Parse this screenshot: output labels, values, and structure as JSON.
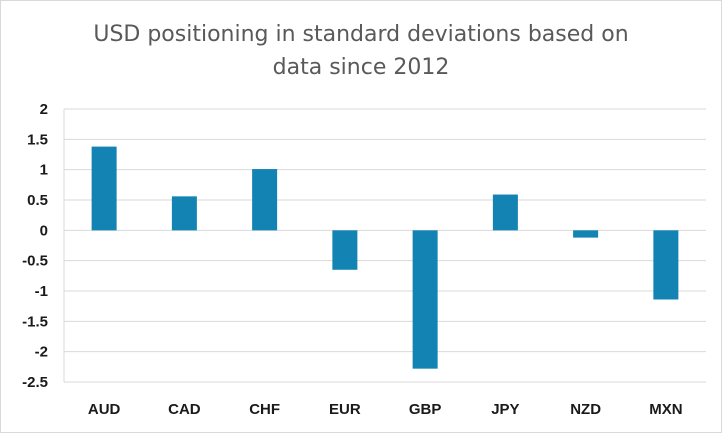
{
  "chart_data": {
    "type": "bar",
    "title_lines": [
      "USD positioning in standard deviations based on",
      "data since 2012"
    ],
    "categories": [
      "AUD",
      "CAD",
      "CHF",
      "EUR",
      "GBP",
      "JPY",
      "NZD",
      "MXN"
    ],
    "values": [
      1.38,
      0.56,
      1.01,
      -0.65,
      -2.28,
      0.59,
      -0.12,
      -1.14
    ],
    "ylim": [
      -2.5,
      2
    ],
    "yticks": [
      2,
      1.5,
      1,
      0.5,
      0,
      -0.5,
      -1,
      -1.5,
      -2,
      -2.5
    ],
    "ytick_labels": [
      "2",
      "1.5",
      "1",
      "0.5",
      "0",
      "-0.5",
      "-1",
      "-1.5",
      "-2",
      "-2.5"
    ],
    "xlabel": "",
    "ylabel": "",
    "grid": true,
    "legend": "none",
    "colors": {
      "bar": "#1283b3",
      "grid": "#d9d9d9",
      "axis": "#d9d9d9"
    }
  }
}
